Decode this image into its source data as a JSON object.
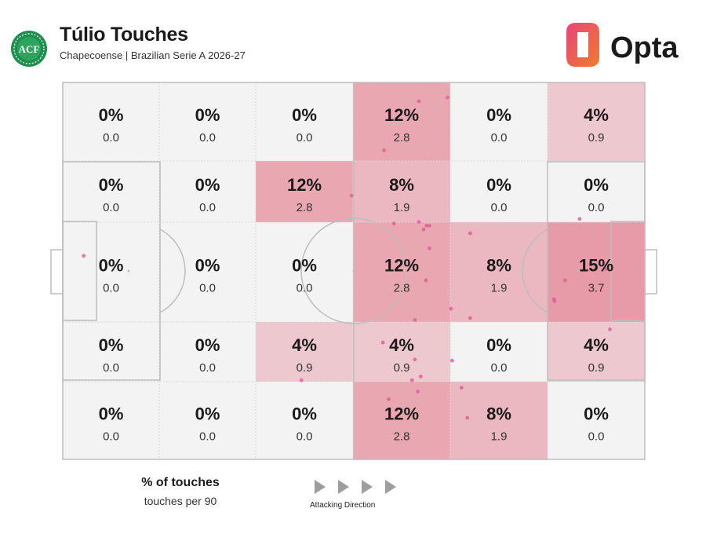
{
  "header": {
    "title": "Túlio Touches",
    "subtitle": "Chapecoense | Brazilian Serie A 2026-27",
    "badge_icon": "chapecoense-crest-icon",
    "badge_text": "ACF",
    "brand": "Opta",
    "brand_icon": "opta-logo-icon",
    "brand_colors": [
      "#e8457a",
      "#f07a2c"
    ]
  },
  "legend": {
    "primary": "% of touches",
    "secondary": "touches per 90"
  },
  "direction": {
    "label": "Attacking Direction",
    "icon": "play-arrow-icon"
  },
  "colors": {
    "zone_max": "#e47f90",
    "pitch_lines": "#bdbdbd",
    "text": "#1a1a1a",
    "dot": "#e0609a"
  },
  "chart_data": {
    "type": "heatmap",
    "title": "Túlio Touches",
    "subtitle": "Chapecoense | Brazilian Serie A 2026-27",
    "columns": 6,
    "rows": 5,
    "cells": [
      [
        {
          "pct": "0%",
          "p90": "0.0",
          "v": 0
        },
        {
          "pct": "0%",
          "p90": "0.0",
          "v": 0
        },
        {
          "pct": "0%",
          "p90": "0.0",
          "v": 0
        },
        {
          "pct": "12%",
          "p90": "2.8",
          "v": 12
        },
        {
          "pct": "0%",
          "p90": "0.0",
          "v": 0
        },
        {
          "pct": "4%",
          "p90": "0.9",
          "v": 4
        }
      ],
      [
        {
          "pct": "0%",
          "p90": "0.0",
          "v": 0
        },
        {
          "pct": "0%",
          "p90": "0.0",
          "v": 0
        },
        {
          "pct": "12%",
          "p90": "2.8",
          "v": 12
        },
        {
          "pct": "8%",
          "p90": "1.9",
          "v": 8
        },
        {
          "pct": "0%",
          "p90": "0.0",
          "v": 0
        },
        {
          "pct": "0%",
          "p90": "0.0",
          "v": 0
        }
      ],
      [
        {
          "pct": "0%",
          "p90": "0.0",
          "v": 0
        },
        {
          "pct": "0%",
          "p90": "0.0",
          "v": 0
        },
        {
          "pct": "0%",
          "p90": "0.0",
          "v": 0
        },
        {
          "pct": "12%",
          "p90": "2.8",
          "v": 12
        },
        {
          "pct": "8%",
          "p90": "1.9",
          "v": 8
        },
        {
          "pct": "15%",
          "p90": "3.7",
          "v": 15
        }
      ],
      [
        {
          "pct": "0%",
          "p90": "0.0",
          "v": 0
        },
        {
          "pct": "0%",
          "p90": "0.0",
          "v": 0
        },
        {
          "pct": "4%",
          "p90": "0.9",
          "v": 4
        },
        {
          "pct": "4%",
          "p90": "0.9",
          "v": 4
        },
        {
          "pct": "0%",
          "p90": "0.0",
          "v": 0
        },
        {
          "pct": "4%",
          "p90": "0.9",
          "v": 4
        }
      ],
      [
        {
          "pct": "0%",
          "p90": "0.0",
          "v": 0
        },
        {
          "pct": "0%",
          "p90": "0.0",
          "v": 0
        },
        {
          "pct": "0%",
          "p90": "0.0",
          "v": 0
        },
        {
          "pct": "12%",
          "p90": "2.8",
          "v": 12
        },
        {
          "pct": "8%",
          "p90": "1.9",
          "v": 8
        },
        {
          "pct": "0%",
          "p90": "0.0",
          "v": 0
        }
      ]
    ],
    "touch_points_pitch_pct": [
      [
        3.6,
        46
      ],
      [
        61.2,
        5
      ],
      [
        66.1,
        4
      ],
      [
        55.2,
        18
      ],
      [
        61.2,
        37
      ],
      [
        60.5,
        63
      ],
      [
        66.7,
        60
      ],
      [
        49.6,
        30
      ],
      [
        56.9,
        37.4
      ],
      [
        62.4,
        52.5
      ],
      [
        66.9,
        73.8
      ],
      [
        70.0,
        62.5
      ],
      [
        94.0,
        65.5
      ],
      [
        86.3,
        52.5
      ],
      [
        84.4,
        57.5
      ],
      [
        93.4,
        49.5
      ],
      [
        88.8,
        36.2
      ],
      [
        84.5,
        58
      ],
      [
        70,
        40
      ],
      [
        63,
        38
      ],
      [
        62.5,
        38
      ],
      [
        62.0,
        39
      ],
      [
        41,
        79
      ],
      [
        55,
        69
      ],
      [
        56,
        84
      ],
      [
        60.5,
        73.5
      ],
      [
        69.5,
        89
      ],
      [
        60,
        79
      ],
      [
        61,
        82
      ],
      [
        61.5,
        78
      ],
      [
        68.5,
        81
      ],
      [
        63,
        44
      ]
    ]
  }
}
